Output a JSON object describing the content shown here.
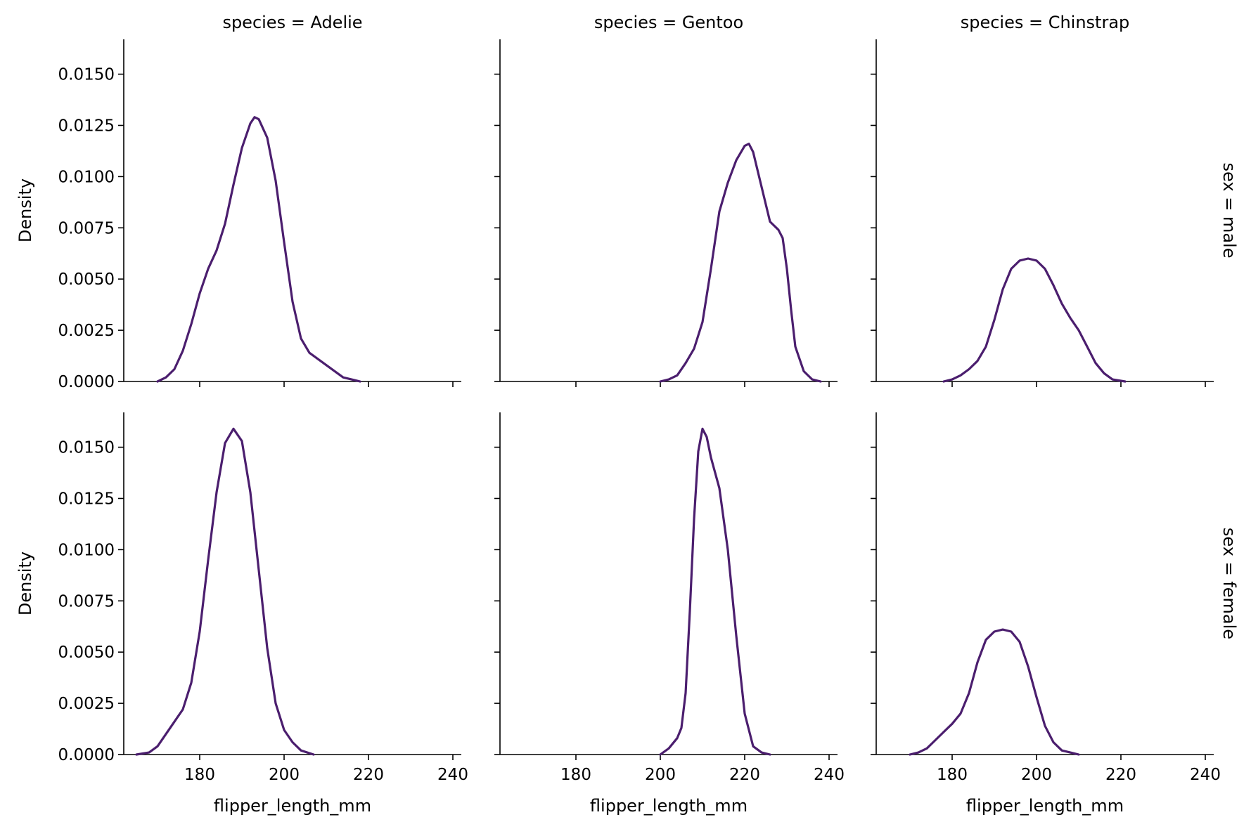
{
  "chart_data": {
    "type": "line",
    "subtype": "kde-density-facet-grid",
    "xlabel": "flipper_length_mm",
    "ylabel": "Density",
    "xticks": [
      180,
      200,
      220,
      240
    ],
    "yticks": [
      0.0,
      0.0025,
      0.005,
      0.0075,
      0.01,
      0.0125,
      0.015
    ],
    "xlim": [
      162,
      242
    ],
    "ylim": [
      0,
      0.0167
    ],
    "line_color": "#4b1e6e",
    "grid": false,
    "col_titles": [
      "species = Adelie",
      "species = Gentoo",
      "species = Chinstrap"
    ],
    "row_titles": [
      "sex = male",
      "sex = female"
    ],
    "facets": [
      {
        "row": 0,
        "col": 0,
        "species": "Adelie",
        "sex": "male",
        "points": [
          [
            170,
            0.0
          ],
          [
            172,
            0.0002
          ],
          [
            174,
            0.0006
          ],
          [
            176,
            0.0015
          ],
          [
            178,
            0.0028
          ],
          [
            180,
            0.0043
          ],
          [
            182,
            0.0055
          ],
          [
            184,
            0.0064
          ],
          [
            186,
            0.0077
          ],
          [
            188,
            0.0096
          ],
          [
            190,
            0.0114
          ],
          [
            192,
            0.0126
          ],
          [
            193,
            0.0129
          ],
          [
            194,
            0.0128
          ],
          [
            196,
            0.0119
          ],
          [
            198,
            0.0098
          ],
          [
            200,
            0.0068
          ],
          [
            202,
            0.0039
          ],
          [
            204,
            0.0021
          ],
          [
            206,
            0.0014
          ],
          [
            208,
            0.0011
          ],
          [
            210,
            0.0008
          ],
          [
            212,
            0.0005
          ],
          [
            214,
            0.0002
          ],
          [
            216,
            0.0001
          ],
          [
            218,
            0.0
          ]
        ]
      },
      {
        "row": 0,
        "col": 1,
        "species": "Gentoo",
        "sex": "male",
        "points": [
          [
            200,
            0.0
          ],
          [
            202,
            0.0001
          ],
          [
            204,
            0.0003
          ],
          [
            206,
            0.0009
          ],
          [
            208,
            0.0016
          ],
          [
            210,
            0.0029
          ],
          [
            212,
            0.0055
          ],
          [
            214,
            0.0083
          ],
          [
            216,
            0.0097
          ],
          [
            218,
            0.0108
          ],
          [
            220,
            0.0115
          ],
          [
            221,
            0.0116
          ],
          [
            222,
            0.0112
          ],
          [
            224,
            0.0095
          ],
          [
            226,
            0.0078
          ],
          [
            228,
            0.0074
          ],
          [
            229,
            0.007
          ],
          [
            230,
            0.0055
          ],
          [
            231,
            0.0035
          ],
          [
            232,
            0.0017
          ],
          [
            234,
            0.0005
          ],
          [
            236,
            0.0001
          ],
          [
            238,
            0.0
          ]
        ]
      },
      {
        "row": 0,
        "col": 2,
        "species": "Chinstrap",
        "sex": "male",
        "points": [
          [
            178,
            0.0
          ],
          [
            180,
            0.0001
          ],
          [
            182,
            0.0003
          ],
          [
            184,
            0.0006
          ],
          [
            186,
            0.001
          ],
          [
            188,
            0.0017
          ],
          [
            190,
            0.003
          ],
          [
            192,
            0.0045
          ],
          [
            194,
            0.0055
          ],
          [
            196,
            0.0059
          ],
          [
            198,
            0.006
          ],
          [
            200,
            0.0059
          ],
          [
            202,
            0.0055
          ],
          [
            204,
            0.0047
          ],
          [
            206,
            0.0038
          ],
          [
            208,
            0.0031
          ],
          [
            210,
            0.0025
          ],
          [
            212,
            0.0017
          ],
          [
            214,
            0.0009
          ],
          [
            216,
            0.0004
          ],
          [
            218,
            0.0001
          ],
          [
            221,
            0.0
          ]
        ]
      },
      {
        "row": 1,
        "col": 0,
        "species": "Adelie",
        "sex": "female",
        "points": [
          [
            165,
            0.0
          ],
          [
            168,
            0.0001
          ],
          [
            170,
            0.0004
          ],
          [
            172,
            0.001
          ],
          [
            174,
            0.0016
          ],
          [
            176,
            0.0022
          ],
          [
            178,
            0.0035
          ],
          [
            180,
            0.006
          ],
          [
            182,
            0.0095
          ],
          [
            184,
            0.0128
          ],
          [
            186,
            0.0152
          ],
          [
            188,
            0.0159
          ],
          [
            190,
            0.0153
          ],
          [
            192,
            0.0128
          ],
          [
            194,
            0.009
          ],
          [
            196,
            0.0052
          ],
          [
            198,
            0.0025
          ],
          [
            200,
            0.0012
          ],
          [
            202,
            0.0006
          ],
          [
            204,
            0.0002
          ],
          [
            207,
            0.0
          ]
        ]
      },
      {
        "row": 1,
        "col": 1,
        "species": "Gentoo",
        "sex": "female",
        "points": [
          [
            200,
            0.0
          ],
          [
            202,
            0.0003
          ],
          [
            204,
            0.0008
          ],
          [
            205,
            0.0013
          ],
          [
            206,
            0.003
          ],
          [
            207,
            0.007
          ],
          [
            208,
            0.0115
          ],
          [
            209,
            0.0148
          ],
          [
            210,
            0.0159
          ],
          [
            211,
            0.0155
          ],
          [
            212,
            0.0145
          ],
          [
            214,
            0.013
          ],
          [
            216,
            0.01
          ],
          [
            218,
            0.0058
          ],
          [
            220,
            0.002
          ],
          [
            222,
            0.0004
          ],
          [
            224,
            0.0001
          ],
          [
            226,
            0.0
          ]
        ]
      },
      {
        "row": 1,
        "col": 2,
        "species": "Chinstrap",
        "sex": "female",
        "points": [
          [
            170,
            0.0
          ],
          [
            172,
            0.0001
          ],
          [
            174,
            0.0003
          ],
          [
            176,
            0.0007
          ],
          [
            178,
            0.0011
          ],
          [
            180,
            0.0015
          ],
          [
            182,
            0.002
          ],
          [
            184,
            0.003
          ],
          [
            186,
            0.0045
          ],
          [
            188,
            0.0056
          ],
          [
            190,
            0.006
          ],
          [
            192,
            0.0061
          ],
          [
            194,
            0.006
          ],
          [
            196,
            0.0055
          ],
          [
            198,
            0.0043
          ],
          [
            200,
            0.0028
          ],
          [
            202,
            0.0014
          ],
          [
            204,
            0.0006
          ],
          [
            206,
            0.0002
          ],
          [
            208,
            0.0001
          ],
          [
            210,
            0.0
          ]
        ]
      }
    ]
  }
}
